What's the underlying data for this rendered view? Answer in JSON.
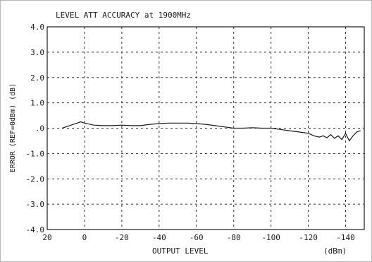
{
  "chart_data": {
    "type": "line",
    "title": "LEVEL ATT ACCURACY  at 1900MHz",
    "xlabel": "OUTPUT LEVEL",
    "xunit": "(dBm)",
    "ylabel": "ERROR  (REF=0dBm)  (dB)",
    "xlim": [
      20,
      -150
    ],
    "ylim": [
      -4.0,
      4.0
    ],
    "x_ticks": [
      20,
      0,
      -20,
      -40,
      -60,
      -80,
      -100,
      -120,
      -140
    ],
    "x_tick_labels": [
      "20",
      "0",
      "-20",
      "-40",
      "-60",
      "-80",
      "-100",
      "-120",
      "-140"
    ],
    "y_ticks": [
      4.0,
      3.0,
      2.0,
      1.0,
      0.0,
      -1.0,
      -2.0,
      -3.0,
      -4.0
    ],
    "y_tick_labels": [
      "4.0",
      "3.0",
      "2.0",
      "1.0",
      ".0",
      "-1.0",
      "-2.0",
      "-3.0",
      "-4.0"
    ],
    "grid": true,
    "grid_style": "dashed",
    "line_color": "#1a1a1a",
    "series": [
      {
        "x": [
          12,
          10,
          8,
          6,
          4,
          2,
          0,
          -5,
          -10,
          -15,
          -20,
          -25,
          -30,
          -35,
          -40,
          -45,
          -50,
          -55,
          -60,
          -65,
          -70,
          -75,
          -80,
          -85,
          -90,
          -95,
          -100,
          -105,
          -110,
          -115,
          -120,
          -123,
          -126,
          -128,
          -130,
          -132,
          -134,
          -136,
          -138,
          -140,
          -142,
          -144,
          -146,
          -148
        ],
        "y": [
          0.0,
          0.05,
          0.1,
          0.15,
          0.2,
          0.25,
          0.2,
          0.12,
          0.1,
          0.1,
          0.12,
          0.1,
          0.1,
          0.15,
          0.18,
          0.2,
          0.2,
          0.2,
          0.18,
          0.15,
          0.1,
          0.05,
          0.0,
          0.0,
          0.02,
          0.0,
          0.0,
          -0.05,
          -0.1,
          -0.15,
          -0.2,
          -0.3,
          -0.35,
          -0.3,
          -0.38,
          -0.25,
          -0.4,
          -0.3,
          -0.45,
          -0.2,
          -0.5,
          -0.3,
          -0.15,
          -0.1
        ]
      }
    ]
  }
}
